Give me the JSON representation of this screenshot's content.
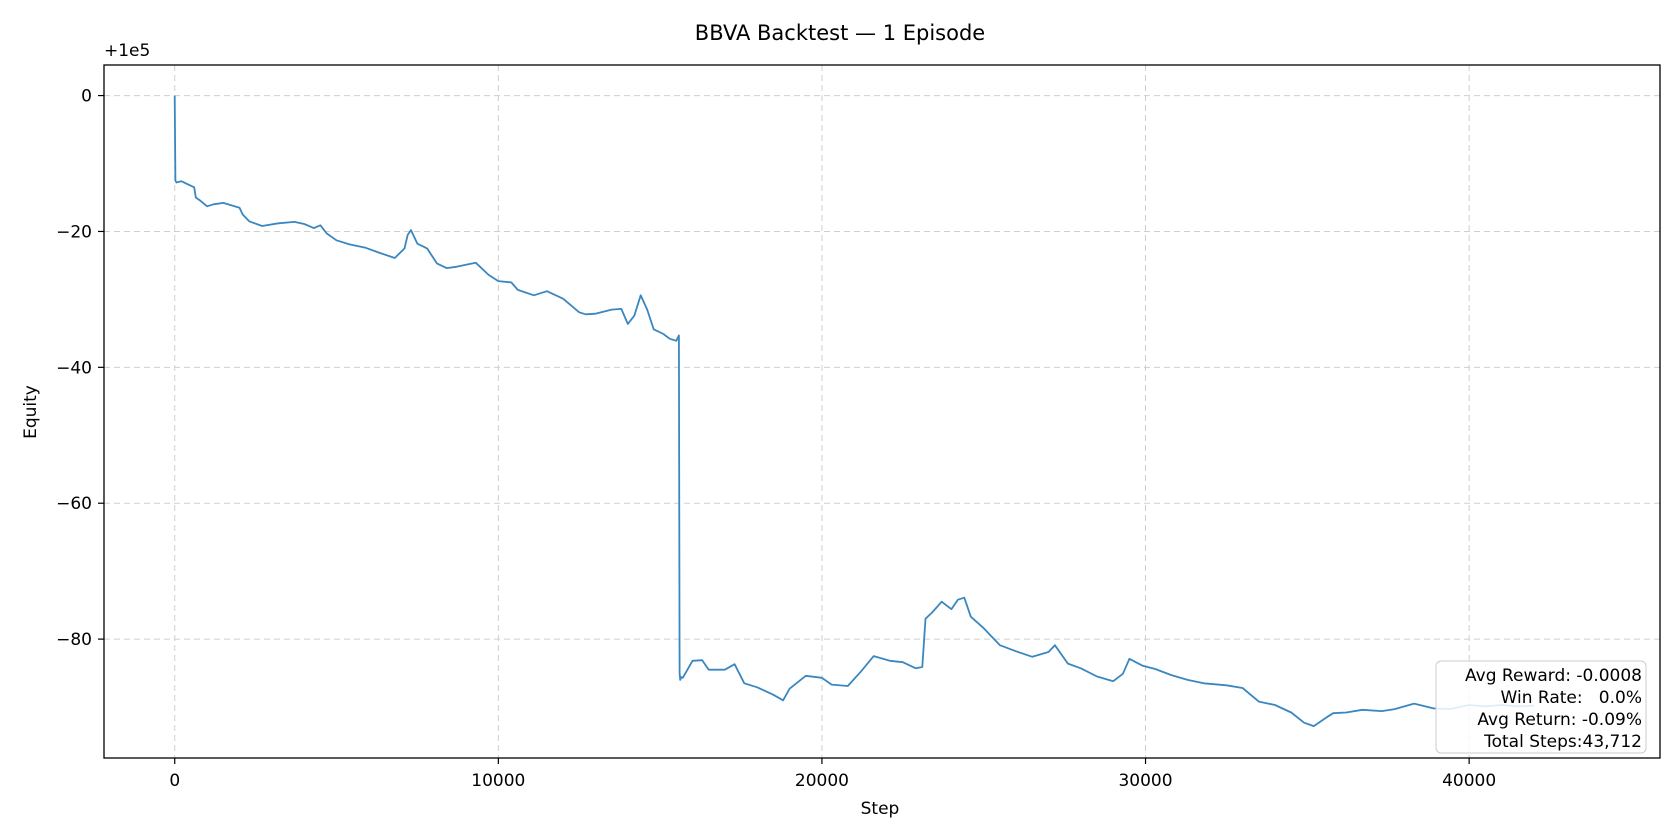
{
  "chart_data": {
    "type": "line",
    "title": "BBVA Backtest — 1 Episode",
    "xlabel": "Step",
    "ylabel": "Equity",
    "offset_label": "+1e5",
    "xlim": [
      -2186,
      45898
    ],
    "ylim": [
      -97.5,
      4.5
    ],
    "xticks": [
      0,
      10000,
      20000,
      30000,
      40000
    ],
    "xtick_labels": [
      "0",
      "10000",
      "20000",
      "30000",
      "40000"
    ],
    "yticks": [
      0,
      -20,
      -40,
      -60,
      -80
    ],
    "ytick_labels": [
      "0",
      "−20",
      "−40",
      "−60",
      "−80"
    ],
    "grid": true,
    "line_color": "#3a87c0",
    "series": [
      {
        "x": [
          0,
          20,
          50,
          200,
          600,
          650,
          800,
          1000,
          1200,
          1500,
          2000,
          2100,
          2300,
          2700,
          3200,
          3700,
          4000,
          4300,
          4500,
          4700,
          5000,
          5400,
          5900,
          6300,
          6800,
          7100,
          7200,
          7300,
          7500,
          7800,
          8100,
          8400,
          8700,
          9300,
          9700,
          10000,
          10400,
          10600,
          11100,
          11500,
          12000,
          12500,
          12700,
          13000,
          13500,
          13800,
          14000,
          14200,
          14400,
          14600,
          14800,
          15100,
          15300,
          15500,
          15580,
          15600,
          15620,
          15650,
          15700,
          16000,
          16300,
          16500,
          17000,
          17300,
          17600,
          18000,
          18500,
          18800,
          19000,
          19500,
          20000,
          20300,
          20800,
          21200,
          21600,
          22100,
          22500,
          22900,
          23100,
          23200,
          23400,
          23700,
          24000,
          24200,
          24400,
          24600,
          25000,
          25500,
          26000,
          26500,
          27000,
          27200,
          27600,
          28000,
          28500,
          29000,
          29300,
          29500,
          29900,
          30300,
          30800,
          31300,
          31800,
          32500,
          33000,
          33500,
          34000,
          34500,
          34900,
          35200,
          35600,
          35800,
          36200,
          36700,
          37300,
          37700,
          38300,
          38900,
          39400,
          40000,
          40500,
          41000,
          41500,
          42000
        ],
        "y": [
          0,
          -12.5,
          -12.8,
          -12.6,
          -13.5,
          -15.0,
          -15.5,
          -16.3,
          -16.0,
          -15.8,
          -16.5,
          -17.5,
          -18.5,
          -19.2,
          -18.8,
          -18.6,
          -18.9,
          -19.5,
          -19.1,
          -20.3,
          -21.3,
          -21.9,
          -22.4,
          -23.1,
          -23.9,
          -22.5,
          -20.5,
          -19.8,
          -21.8,
          -22.5,
          -24.7,
          -25.4,
          -25.2,
          -24.6,
          -26.4,
          -27.3,
          -27.5,
          -28.6,
          -29.4,
          -28.8,
          -29.9,
          -31.9,
          -32.2,
          -32.1,
          -31.5,
          -31.4,
          -33.6,
          -32.4,
          -29.4,
          -31.5,
          -34.4,
          -35.1,
          -35.8,
          -36.1,
          -35.3,
          -85.0,
          -86.0,
          -85.6,
          -85.7,
          -83.2,
          -83.1,
          -84.5,
          -84.5,
          -83.7,
          -86.5,
          -87.1,
          -88.2,
          -89.0,
          -87.3,
          -85.4,
          -85.7,
          -86.7,
          -86.9,
          -84.8,
          -82.5,
          -83.2,
          -83.4,
          -84.3,
          -84.1,
          -77.0,
          -76.1,
          -74.5,
          -75.6,
          -74.2,
          -73.9,
          -76.7,
          -78.4,
          -80.9,
          -81.8,
          -82.6,
          -81.9,
          -80.9,
          -83.6,
          -84.3,
          -85.5,
          -86.2,
          -85.1,
          -82.9,
          -83.9,
          -84.4,
          -85.3,
          -86.0,
          -86.5,
          -86.8,
          -87.2,
          -89.2,
          -89.7,
          -90.8,
          -92.3,
          -92.8,
          -91.5,
          -90.9,
          -90.8,
          -90.4,
          -90.6,
          -90.3,
          -89.5,
          -90.2,
          -90.3,
          -89.7,
          -89.9,
          -89.7,
          -89.9,
          -89.8
        ],
        "values_are_offsets_from": 100000
      }
    ],
    "stats_box": {
      "placement": "bottom-right",
      "lines": [
        "Avg Reward: -0.0008",
        "Win Rate:   0.0%",
        "Avg Return: -0.09%",
        "Total Steps:43,712"
      ]
    }
  }
}
